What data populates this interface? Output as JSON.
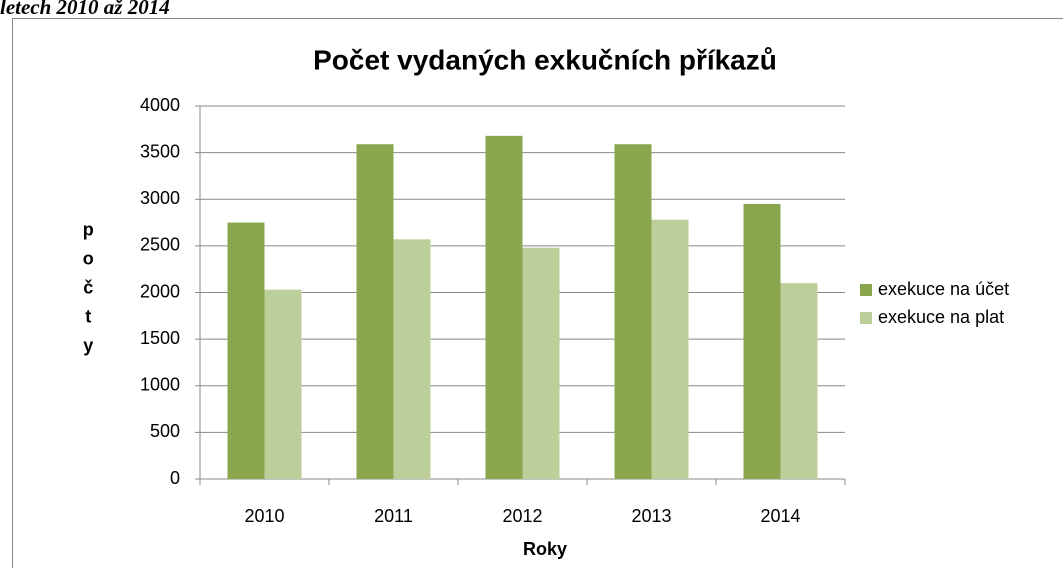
{
  "caption": "letech 2010 až 2014",
  "chart_data": {
    "type": "bar",
    "title": "Počet vydaných exkučních příkazů",
    "categories": [
      "2010",
      "2011",
      "2012",
      "2013",
      "2014"
    ],
    "series": [
      {
        "name": "exekuce na účet",
        "color": "#8aa64f",
        "values": [
          2750,
          3590,
          3680,
          3590,
          2950
        ]
      },
      {
        "name": "exekuce na plat",
        "color": "#bccf9a",
        "values": [
          2030,
          2570,
          2480,
          2780,
          2100
        ]
      }
    ],
    "xlabel": "Roky",
    "ylabel": "počty",
    "ylim": [
      0,
      4000
    ],
    "yticks": [
      0,
      500,
      1000,
      1500,
      2000,
      2500,
      3000,
      3500,
      4000
    ],
    "grid": true,
    "legend": "right"
  }
}
